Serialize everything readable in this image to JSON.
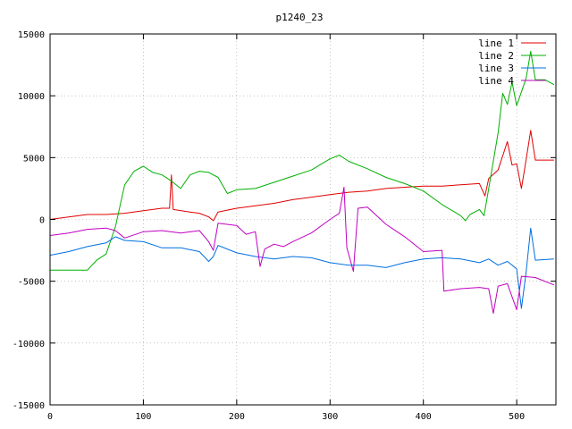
{
  "chart_data": {
    "type": "line",
    "title": "p1240_23",
    "xlabel": "",
    "ylabel": "",
    "xlim": [
      0,
      542
    ],
    "ylim": [
      -15000,
      15000
    ],
    "x_ticks": [
      0,
      100,
      200,
      300,
      400,
      500
    ],
    "y_ticks": [
      -15000,
      -10000,
      -5000,
      0,
      5000,
      10000,
      15000
    ],
    "x_tick_labels": [
      "0",
      "100",
      "200",
      "300",
      "400",
      "500"
    ],
    "y_tick_labels": [
      "-15000",
      "-10000",
      "-5000",
      "0",
      "5000",
      "10000",
      "15000"
    ],
    "grid": true,
    "legend_position": "top-right",
    "series": [
      {
        "name": "line 1",
        "color": "#e00000",
        "points": [
          [
            0,
            0
          ],
          [
            20,
            200
          ],
          [
            40,
            400
          ],
          [
            60,
            400
          ],
          [
            80,
            500
          ],
          [
            100,
            700
          ],
          [
            120,
            900
          ],
          [
            128,
            900
          ],
          [
            130,
            3600
          ],
          [
            132,
            800
          ],
          [
            150,
            600
          ],
          [
            160,
            500
          ],
          [
            170,
            200
          ],
          [
            175,
            -100
          ],
          [
            180,
            600
          ],
          [
            200,
            900
          ],
          [
            220,
            1100
          ],
          [
            240,
            1300
          ],
          [
            260,
            1600
          ],
          [
            280,
            1800
          ],
          [
            300,
            2000
          ],
          [
            320,
            2200
          ],
          [
            340,
            2300
          ],
          [
            360,
            2500
          ],
          [
            380,
            2600
          ],
          [
            400,
            2700
          ],
          [
            420,
            2700
          ],
          [
            440,
            2800
          ],
          [
            460,
            2900
          ],
          [
            466,
            1900
          ],
          [
            470,
            3300
          ],
          [
            480,
            4000
          ],
          [
            490,
            6300
          ],
          [
            495,
            4400
          ],
          [
            500,
            4500
          ],
          [
            505,
            2500
          ],
          [
            510,
            4800
          ],
          [
            515,
            7200
          ],
          [
            520,
            4800
          ],
          [
            540,
            4800
          ]
        ]
      },
      {
        "name": "line 2",
        "color": "#00b000",
        "points": [
          [
            0,
            -4100
          ],
          [
            20,
            -4100
          ],
          [
            40,
            -4100
          ],
          [
            50,
            -3300
          ],
          [
            60,
            -2800
          ],
          [
            70,
            -600
          ],
          [
            80,
            2800
          ],
          [
            90,
            3900
          ],
          [
            100,
            4300
          ],
          [
            110,
            3800
          ],
          [
            120,
            3600
          ],
          [
            130,
            3100
          ],
          [
            140,
            2500
          ],
          [
            150,
            3600
          ],
          [
            160,
            3900
          ],
          [
            170,
            3800
          ],
          [
            180,
            3400
          ],
          [
            190,
            2100
          ],
          [
            200,
            2400
          ],
          [
            220,
            2500
          ],
          [
            240,
            3000
          ],
          [
            260,
            3500
          ],
          [
            280,
            4000
          ],
          [
            300,
            4900
          ],
          [
            310,
            5200
          ],
          [
            320,
            4700
          ],
          [
            340,
            4100
          ],
          [
            360,
            3400
          ],
          [
            380,
            2900
          ],
          [
            400,
            2300
          ],
          [
            420,
            1200
          ],
          [
            440,
            300
          ],
          [
            445,
            -100
          ],
          [
            450,
            400
          ],
          [
            460,
            800
          ],
          [
            465,
            300
          ],
          [
            470,
            2500
          ],
          [
            480,
            7000
          ],
          [
            485,
            10200
          ],
          [
            490,
            9300
          ],
          [
            495,
            11100
          ],
          [
            500,
            9200
          ],
          [
            510,
            11400
          ],
          [
            515,
            13600
          ],
          [
            520,
            11300
          ],
          [
            530,
            11300
          ],
          [
            540,
            10900
          ]
        ]
      },
      {
        "name": "line 3",
        "color": "#0070e0",
        "points": [
          [
            0,
            -2900
          ],
          [
            20,
            -2600
          ],
          [
            40,
            -2200
          ],
          [
            60,
            -1900
          ],
          [
            70,
            -1400
          ],
          [
            80,
            -1700
          ],
          [
            100,
            -1800
          ],
          [
            120,
            -2300
          ],
          [
            140,
            -2300
          ],
          [
            160,
            -2600
          ],
          [
            170,
            -3400
          ],
          [
            175,
            -3000
          ],
          [
            180,
            -2100
          ],
          [
            200,
            -2700
          ],
          [
            220,
            -3000
          ],
          [
            240,
            -3200
          ],
          [
            260,
            -3000
          ],
          [
            280,
            -3100
          ],
          [
            300,
            -3500
          ],
          [
            320,
            -3700
          ],
          [
            340,
            -3700
          ],
          [
            360,
            -3900
          ],
          [
            380,
            -3500
          ],
          [
            400,
            -3200
          ],
          [
            420,
            -3100
          ],
          [
            440,
            -3200
          ],
          [
            460,
            -3500
          ],
          [
            470,
            -3200
          ],
          [
            480,
            -3700
          ],
          [
            490,
            -3400
          ],
          [
            500,
            -4000
          ],
          [
            505,
            -7200
          ],
          [
            510,
            -4300
          ],
          [
            515,
            -700
          ],
          [
            520,
            -3300
          ],
          [
            540,
            -3200
          ]
        ]
      },
      {
        "name": "line 4",
        "color": "#c000c0",
        "points": [
          [
            0,
            -1300
          ],
          [
            20,
            -1100
          ],
          [
            40,
            -800
          ],
          [
            60,
            -700
          ],
          [
            70,
            -900
          ],
          [
            80,
            -1500
          ],
          [
            100,
            -1000
          ],
          [
            120,
            -900
          ],
          [
            140,
            -1100
          ],
          [
            160,
            -900
          ],
          [
            170,
            -1800
          ],
          [
            175,
            -2500
          ],
          [
            180,
            -300
          ],
          [
            200,
            -500
          ],
          [
            210,
            -1200
          ],
          [
            220,
            -1000
          ],
          [
            225,
            -3800
          ],
          [
            230,
            -2400
          ],
          [
            240,
            -2000
          ],
          [
            250,
            -2200
          ],
          [
            260,
            -1800
          ],
          [
            280,
            -1100
          ],
          [
            300,
            0
          ],
          [
            310,
            500
          ],
          [
            315,
            2600
          ],
          [
            318,
            -2300
          ],
          [
            325,
            -4200
          ],
          [
            330,
            900
          ],
          [
            340,
            1000
          ],
          [
            360,
            -400
          ],
          [
            380,
            -1400
          ],
          [
            400,
            -2600
          ],
          [
            420,
            -2500
          ],
          [
            422,
            -5800
          ],
          [
            440,
            -5600
          ],
          [
            460,
            -5500
          ],
          [
            470,
            -5600
          ],
          [
            475,
            -7600
          ],
          [
            480,
            -5400
          ],
          [
            490,
            -5200
          ],
          [
            500,
            -7300
          ],
          [
            505,
            -4600
          ],
          [
            520,
            -4700
          ],
          [
            540,
            -5300
          ]
        ]
      }
    ]
  }
}
